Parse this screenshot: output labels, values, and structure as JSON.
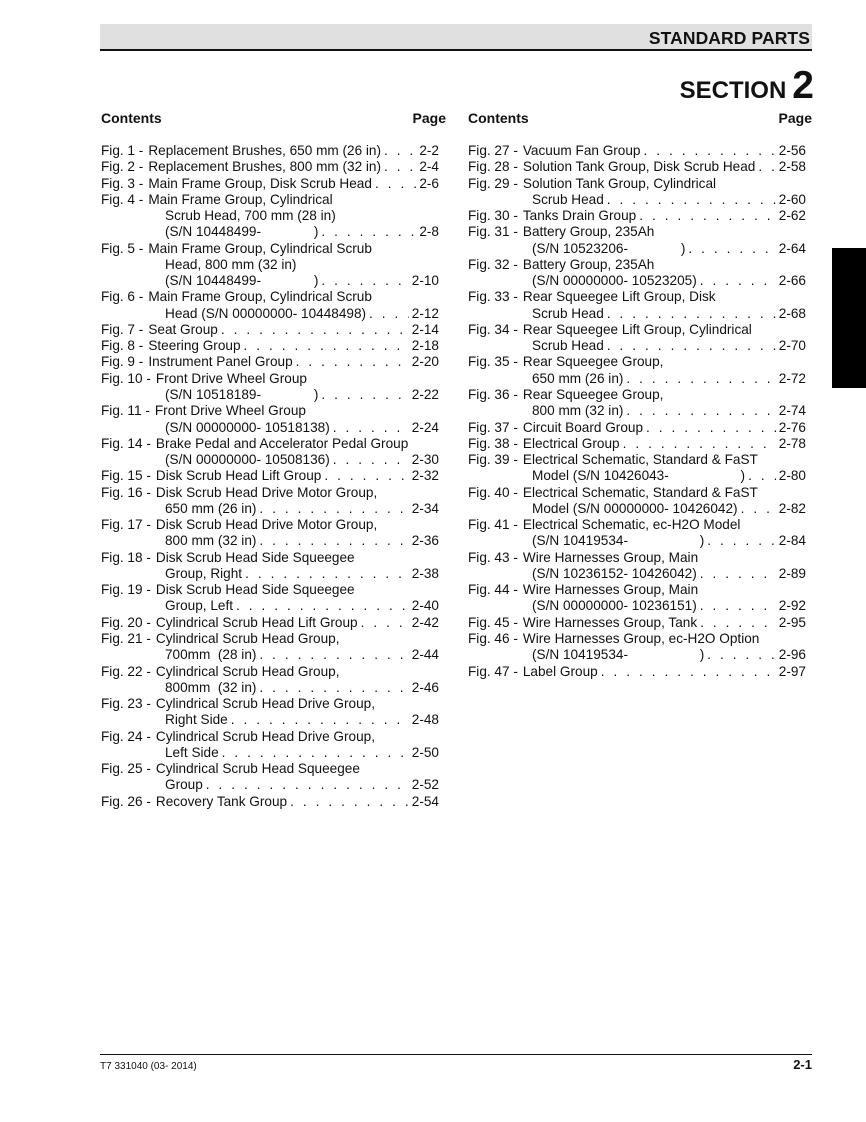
{
  "header": {
    "title": "STANDARD PARTS",
    "section_word": "SECTION",
    "section_number": "2"
  },
  "columns": [
    {
      "contents_label": "Contents",
      "page_label": "Page",
      "entries": [
        {
          "fig": "Fig. 1 -",
          "lines": [
            "Replacement Brushes, 650 mm (26 in)"
          ],
          "page": "2-2"
        },
        {
          "fig": "Fig. 2 -",
          "lines": [
            "Replacement Brushes, 800 mm (32 in)"
          ],
          "page": "2-4"
        },
        {
          "fig": "Fig. 3 -",
          "lines": [
            "Main Frame Group, Disk Scrub Head"
          ],
          "page": "2-6"
        },
        {
          "fig": "Fig. 4 -",
          "lines": [
            "Main Frame Group, Cylindrical",
            "Scrub Head, 700 mm (28 in)",
            "(S/N 10448499-              )"
          ],
          "page": "2-8"
        },
        {
          "fig": "Fig. 5 -",
          "lines": [
            "Main Frame Group, Cylindrical Scrub",
            "Head, 800 mm (32 in)",
            "(S/N 10448499-              )"
          ],
          "page": "2-10"
        },
        {
          "fig": "Fig. 6 -",
          "lines": [
            "Main Frame Group, Cylindrical Scrub",
            "Head (S/N 00000000- 10448498)"
          ],
          "page": "2-12"
        },
        {
          "fig": "Fig. 7 -",
          "lines": [
            "Seat Group"
          ],
          "page": "2-14"
        },
        {
          "fig": "Fig. 8 -",
          "lines": [
            "Steering Group"
          ],
          "page": "2-18"
        },
        {
          "fig": "Fig. 9 -",
          "lines": [
            "Instrument Panel Group"
          ],
          "page": "2-20"
        },
        {
          "fig": "Fig. 10 -",
          "lines": [
            "Front Drive Wheel Group",
            "(S/N 10518189-              )"
          ],
          "page": "2-22"
        },
        {
          "fig": "Fig. 11 -",
          "lines": [
            "Front Drive Wheel Group",
            "(S/N 00000000- 10518138)"
          ],
          "page": "2-24"
        },
        {
          "fig": "Fig. 14 -",
          "lines": [
            "Brake Pedal and Accelerator Pedal Group",
            "(S/N 00000000- 10508136)"
          ],
          "page": "2-30"
        },
        {
          "fig": "Fig. 15 -",
          "lines": [
            "Disk Scrub Head Lift Group"
          ],
          "page": "2-32"
        },
        {
          "fig": "Fig. 16 -",
          "lines": [
            "Disk Scrub Head Drive Motor Group,",
            "650 mm (26 in)"
          ],
          "page": "2-34"
        },
        {
          "fig": "Fig. 17 -",
          "lines": [
            "Disk Scrub Head Drive Motor Group,",
            "800 mm (32 in)"
          ],
          "page": "2-36"
        },
        {
          "fig": "Fig. 18 -",
          "lines": [
            "Disk Scrub Head Side Squeegee",
            "Group, Right"
          ],
          "page": "2-38"
        },
        {
          "fig": "Fig. 19 -",
          "lines": [
            "Disk Scrub Head Side Squeegee",
            "Group, Left"
          ],
          "page": "2-40"
        },
        {
          "fig": "Fig. 20 -",
          "lines": [
            "Cylindrical Scrub Head Lift Group"
          ],
          "page": "2-42"
        },
        {
          "fig": "Fig. 21 -",
          "lines": [
            "Cylindrical Scrub Head Group,",
            "700mm  (28 in)"
          ],
          "page": "2-44"
        },
        {
          "fig": "Fig. 22 -",
          "lines": [
            "Cylindrical Scrub Head Group,",
            "800mm  (32 in)"
          ],
          "page": "2-46"
        },
        {
          "fig": "Fig. 23 -",
          "lines": [
            "Cylindrical Scrub Head Drive Group,",
            "Right Side"
          ],
          "page": "2-48"
        },
        {
          "fig": "Fig. 24 -",
          "lines": [
            "Cylindrical Scrub Head Drive Group,",
            "Left Side"
          ],
          "page": "2-50"
        },
        {
          "fig": "Fig. 25 -",
          "lines": [
            "Cylindrical Scrub Head Squeegee",
            "Group"
          ],
          "page": "2-52"
        },
        {
          "fig": "Fig. 26 -",
          "lines": [
            "Recovery Tank Group"
          ],
          "page": "2-54"
        }
      ]
    },
    {
      "contents_label": "Contents",
      "page_label": "Page",
      "entries": [
        {
          "fig": "Fig. 27 -",
          "lines": [
            "Vacuum Fan Group"
          ],
          "page": "2-56"
        },
        {
          "fig": "Fig. 28 -",
          "lines": [
            "Solution Tank Group, Disk Scrub Head"
          ],
          "page": "2-58"
        },
        {
          "fig": "Fig. 29 -",
          "lines": [
            "Solution Tank Group, Cylindrical",
            "Scrub Head"
          ],
          "page": "2-60"
        },
        {
          "fig": "Fig. 30 -",
          "lines": [
            "Tanks Drain Group"
          ],
          "page": "2-62"
        },
        {
          "fig": "Fig. 31 -",
          "lines": [
            "Battery Group, 235Ah",
            "(S/N 10523206-              )"
          ],
          "page": "2-64"
        },
        {
          "fig": "Fig. 32 -",
          "lines": [
            "Battery Group, 235Ah",
            "(S/N 00000000- 10523205)"
          ],
          "page": "2-66"
        },
        {
          "fig": "Fig. 33 -",
          "lines": [
            "Rear Squeegee Lift Group, Disk",
            "Scrub Head"
          ],
          "page": "2-68"
        },
        {
          "fig": "Fig. 34 -",
          "lines": [
            "Rear Squeegee Lift Group, Cylindrical",
            "Scrub Head"
          ],
          "page": "2-70"
        },
        {
          "fig": "Fig. 35 -",
          "lines": [
            "Rear Squeegee Group,",
            "650 mm (26 in)"
          ],
          "page": "2-72"
        },
        {
          "fig": "Fig. 36 -",
          "lines": [
            "Rear Squeegee Group,",
            "800 mm (32 in)"
          ],
          "page": "2-74"
        },
        {
          "fig": "Fig. 37 -",
          "lines": [
            "Circuit Board Group"
          ],
          "page": "2-76"
        },
        {
          "fig": "Fig. 38 -",
          "lines": [
            "Electrical Group"
          ],
          "page": "2-78"
        },
        {
          "fig": "Fig. 39 -",
          "lines": [
            "Electrical Schematic, Standard & FaST",
            "Model (S/N 10426043-                   )"
          ],
          "page": "2-80"
        },
        {
          "fig": "Fig. 40 -",
          "lines": [
            "Electrical Schematic, Standard & FaST",
            "Model (S/N 00000000- 10426042)"
          ],
          "page": "2-82"
        },
        {
          "fig": "Fig. 41 -",
          "lines": [
            "Electrical Schematic, ec-H2O Model",
            "(S/N 10419534-                   )"
          ],
          "page": "2-84"
        },
        {
          "fig": "Fig. 43 -",
          "lines": [
            "Wire Harnesses Group, Main",
            "(S/N 10236152- 10426042)"
          ],
          "page": "2-89"
        },
        {
          "fig": "Fig. 44 -",
          "lines": [
            "Wire Harnesses Group, Main",
            "(S/N 00000000- 10236151)"
          ],
          "page": "2-92"
        },
        {
          "fig": "Fig. 45 -",
          "lines": [
            "Wire Harnesses Group, Tank"
          ],
          "page": "2-95"
        },
        {
          "fig": "Fig. 46 -",
          "lines": [
            "Wire Harnesses Group, ec-H2O Option",
            "(S/N 10419534-                   )"
          ],
          "page": "2-96"
        },
        {
          "fig": "Fig. 47 -",
          "lines": [
            "Label Group"
          ],
          "page": "2-97"
        }
      ]
    }
  ],
  "footer": {
    "doc_number": "T7 331040  (03- 2014)",
    "page_number": "2-1"
  }
}
